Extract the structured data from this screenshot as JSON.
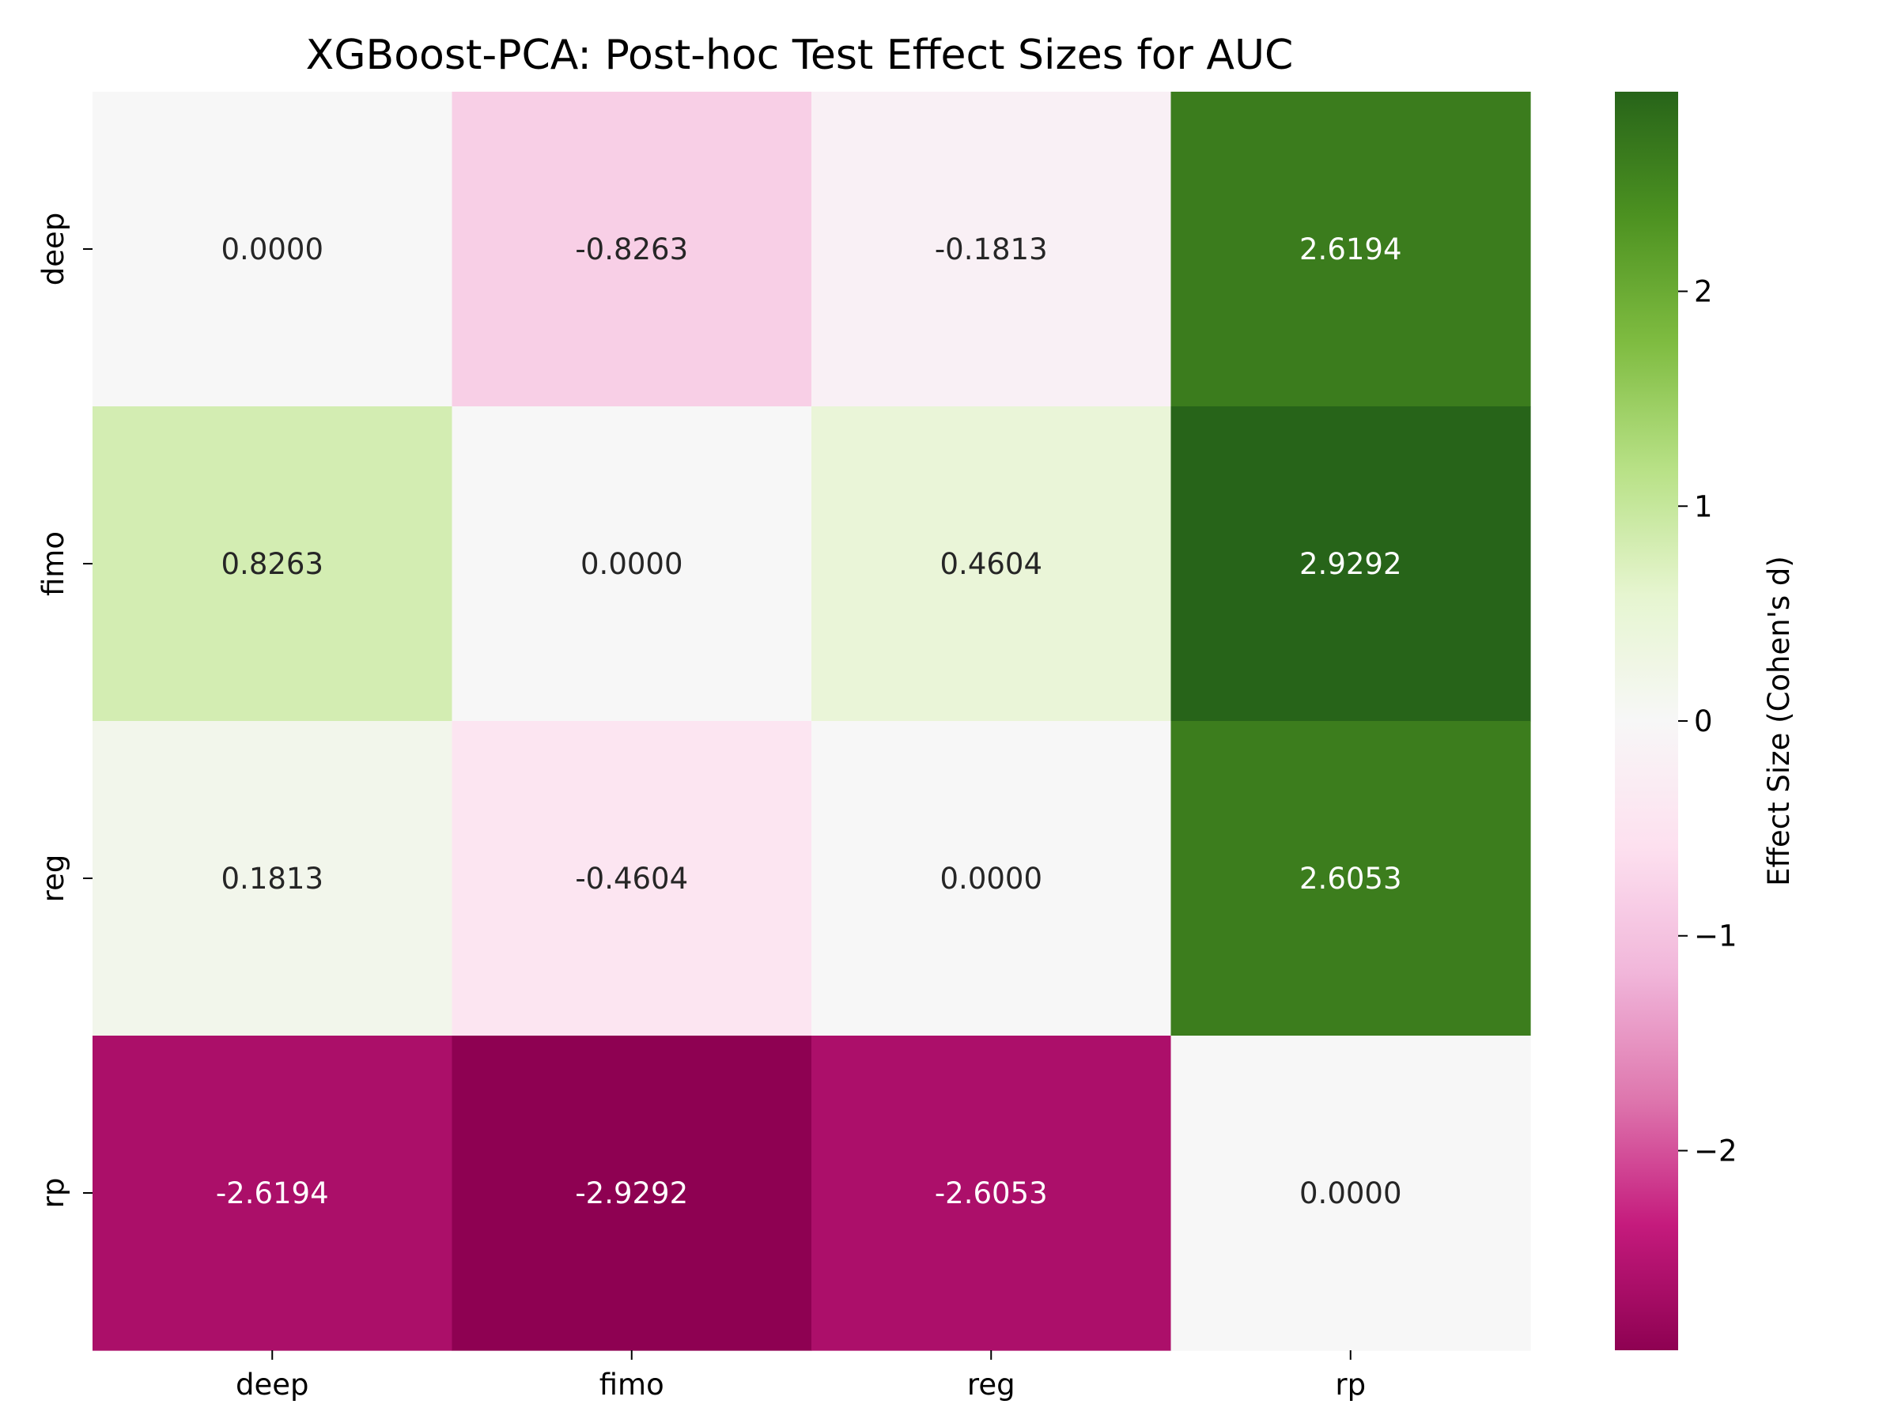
{
  "chart_data": {
    "type": "heatmap",
    "title": "XGBoost-PCA: Post-hoc Test Effect Sizes for AUC",
    "x_categories": [
      "deep",
      "fimo",
      "reg",
      "rp"
    ],
    "y_categories": [
      "deep",
      "fimo",
      "reg",
      "rp"
    ],
    "values": [
      [
        0.0,
        -0.8263,
        -0.1813,
        2.6194
      ],
      [
        0.8263,
        0.0,
        0.4604,
        2.9292
      ],
      [
        0.1813,
        -0.4604,
        0.0,
        2.6053
      ],
      [
        -2.6194,
        -2.9292,
        -2.6053,
        0.0
      ]
    ],
    "value_labels": [
      [
        "0.0000",
        "-0.8263",
        "-0.1813",
        "2.6194"
      ],
      [
        "0.8263",
        "0.0000",
        "0.4604",
        "2.9292"
      ],
      [
        "0.1813",
        "-0.4604",
        "0.0000",
        "2.6053"
      ],
      [
        "-2.6194",
        "-2.9292",
        "-2.6053",
        "0.0000"
      ]
    ],
    "colormap": "PiYG",
    "colorbar": {
      "label": "Effect Size (Cohen's d)",
      "range": [
        -2.9292,
        2.9292
      ],
      "ticks": [
        2,
        1,
        0,
        -1,
        -2
      ],
      "tick_labels": [
        "2",
        "1",
        "0",
        "−1",
        "−2"
      ]
    }
  }
}
